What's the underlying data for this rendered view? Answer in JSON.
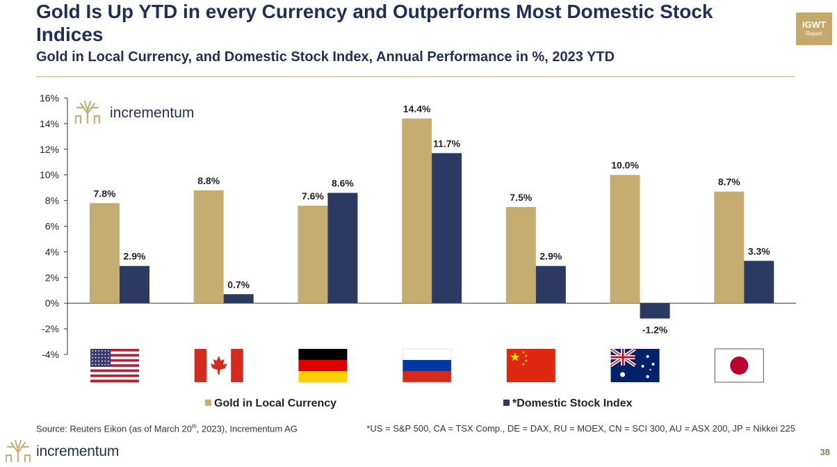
{
  "header": {
    "title": "Gold Is Up YTD in every Currency and Outperforms Most Domestic Stock Indices",
    "subtitle": "Gold in Local Currency, and Domestic Stock Index, Annual Performance in %, 2023 YTD",
    "badge_line1": "IGWT",
    "badge_line2": "Report"
  },
  "brand": {
    "name": "incrementum"
  },
  "colors": {
    "gold": "#c5ad72",
    "navy": "#2b3a63",
    "title": "#1f2f57"
  },
  "chart_data": {
    "type": "bar",
    "categories": [
      "US",
      "CA",
      "DE",
      "RU",
      "CN",
      "AU",
      "JP"
    ],
    "series": [
      {
        "name": "Gold in Local Currency",
        "values": [
          7.8,
          8.8,
          7.6,
          14.4,
          7.5,
          10.0,
          8.7
        ],
        "labels": [
          "7.8%",
          "8.8%",
          "7.6%",
          "14.4%",
          "7.5%",
          "10.0%",
          "8.7%"
        ]
      },
      {
        "name": "*Domestic Stock Index",
        "values": [
          2.9,
          0.7,
          8.6,
          11.7,
          2.9,
          -1.2,
          3.3
        ],
        "labels": [
          "2.9%",
          "0.7%",
          "8.6%",
          "11.7%",
          "2.9%",
          "-1.2%",
          "3.3%"
        ]
      }
    ],
    "ylim": [
      -4,
      16
    ],
    "yticks": [
      -4,
      -2,
      0,
      2,
      4,
      6,
      8,
      10,
      12,
      14,
      16
    ],
    "ytick_labels": [
      "-4%",
      "-2%",
      "0%",
      "2%",
      "4%",
      "6%",
      "8%",
      "10%",
      "12%",
      "14%",
      "16%"
    ],
    "flags": [
      "us-flag",
      "canada-flag",
      "germany-flag",
      "russia-flag",
      "china-flag",
      "australia-flag",
      "japan-flag"
    ],
    "legend_position": "bottom"
  },
  "footer": {
    "source_prefix": "Source: Reuters Eikon  (as of March 20",
    "source_sup": "th",
    "source_suffix": ", 2023), Incrementum AG",
    "footnote": "*US = S&P 500, CA = TSX Comp., DE = DAX, RU = MOEX, CN = SCI 300, AU = ASX 200, JP = Nikkei 225",
    "page_number": "38"
  }
}
